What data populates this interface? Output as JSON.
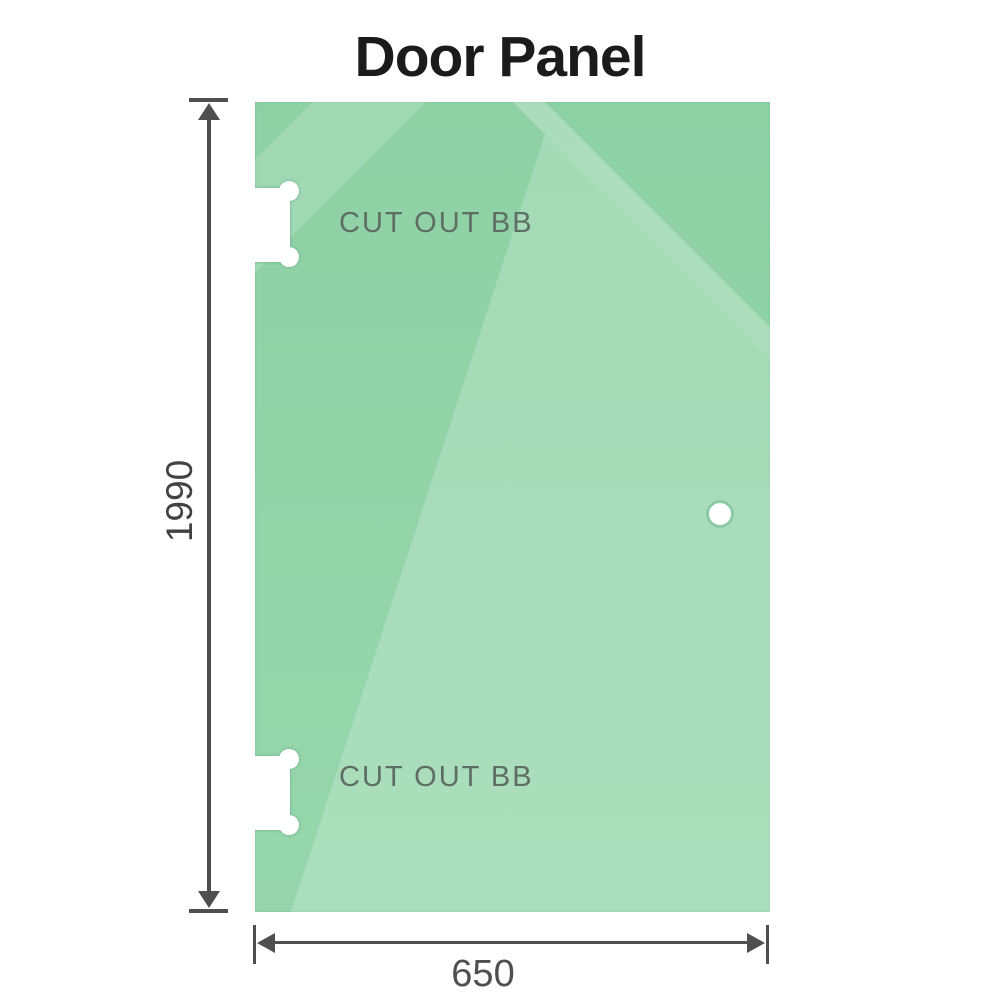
{
  "title": "Door Panel",
  "panel": {
    "description": "Glass door panel with two hinge cutouts on the left edge and a round handle hole on the right side",
    "cutouts": [
      {
        "label": "CUT OUT BB",
        "position": "top-left"
      },
      {
        "label": "CUT OUT BB",
        "position": "bottom-left"
      }
    ],
    "handle_hole": {
      "shape": "circle",
      "position": "middle-right"
    }
  },
  "dimensions": {
    "height": {
      "value": "1990",
      "orientation": "vertical"
    },
    "width": {
      "value": "650",
      "orientation": "horizontal"
    }
  },
  "colors": {
    "glass_green": "#8ed1a5",
    "dimension_line": "#4f4f4f",
    "cutout_label_text": "#5f6e65",
    "dimension_text": "#424242",
    "title_text": "#1b1b1b",
    "hole_ring": "#8ccaa6"
  }
}
